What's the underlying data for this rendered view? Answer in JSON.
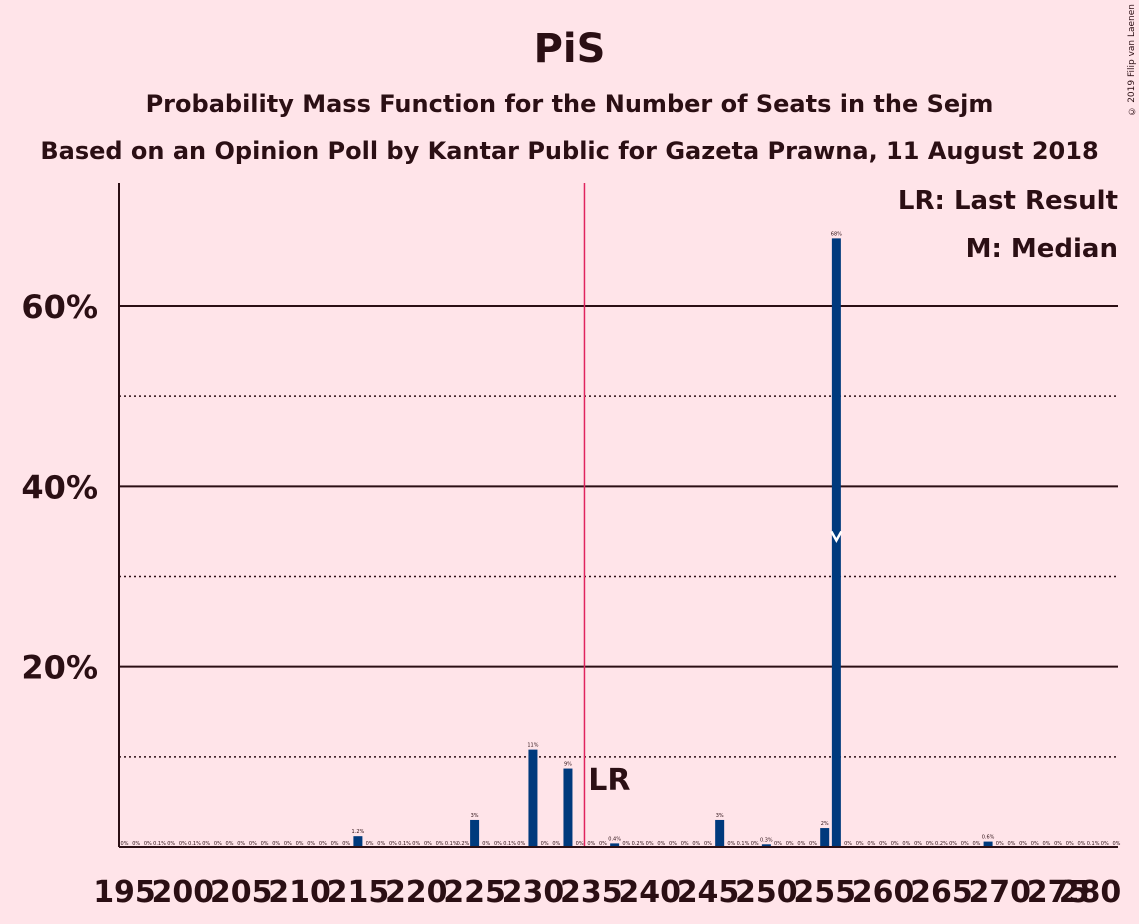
{
  "header": {
    "title": "PiS",
    "subtitle": "Probability Mass Function for the Number of Seats in the Sejm",
    "subtitle2": "Based on an Opinion Poll by Kantar Public for Gazeta Prawna, 11 August 2018",
    "copyright": "© 2019 Filip van Laenen"
  },
  "legend": {
    "last_result": "LR: Last Result",
    "median": "M: Median"
  },
  "colors": {
    "background": "#ffe4e9",
    "bar": "#003a7d",
    "last_result_line": "#e0245e",
    "text": "#2b0f14"
  },
  "chart_data": {
    "type": "bar",
    "x_start": 195,
    "x_end": 280,
    "ylim": [
      0,
      74
    ],
    "y_ticks_major": [
      20,
      40,
      60
    ],
    "y_ticks_major_labels": [
      "20%",
      "40%",
      "60%"
    ],
    "y_ticks_minor": [
      10,
      30,
      50
    ],
    "x_tick_labels": [
      "195",
      "200",
      "205",
      "210",
      "215",
      "220",
      "225",
      "230",
      "235",
      "240",
      "245",
      "250",
      "255",
      "260",
      "265",
      "270",
      "275",
      "280"
    ],
    "last_result_seat": 235,
    "last_result_label": "LR",
    "median_seat": 256,
    "median_marker": "M",
    "values": [
      {
        "seat": 215,
        "value": 1.2,
        "label": "1.2%"
      },
      {
        "seat": 225,
        "value": 3.0,
        "label": "3%"
      },
      {
        "seat": 230,
        "value": 10.8,
        "label": "11%"
      },
      {
        "seat": 233,
        "value": 8.7,
        "label": "9%"
      },
      {
        "seat": 237,
        "value": 0.4,
        "label": "0.4%"
      },
      {
        "seat": 246,
        "value": 3.0,
        "label": "3%"
      },
      {
        "seat": 250,
        "value": 0.3,
        "label": "0.3%"
      },
      {
        "seat": 255,
        "value": 2.1,
        "label": "2%"
      },
      {
        "seat": 256,
        "value": 67.5,
        "label": "68%"
      },
      {
        "seat": 269,
        "value": 0.6,
        "label": "0.6%"
      }
    ],
    "small_labels": [
      {
        "seat": 198,
        "label": "0.1%"
      },
      {
        "seat": 201,
        "label": "0.1%"
      },
      {
        "seat": 219,
        "label": "0.1%"
      },
      {
        "seat": 223,
        "label": "0.1%"
      },
      {
        "seat": 224,
        "label": "0.2%"
      },
      {
        "seat": 228,
        "label": "0.1%"
      },
      {
        "seat": 239,
        "label": "0.2%"
      },
      {
        "seat": 248,
        "label": "0.1%"
      },
      {
        "seat": 265,
        "label": "0.2%"
      },
      {
        "seat": 278,
        "label": "0.1%"
      }
    ],
    "zero_label": "0%"
  }
}
